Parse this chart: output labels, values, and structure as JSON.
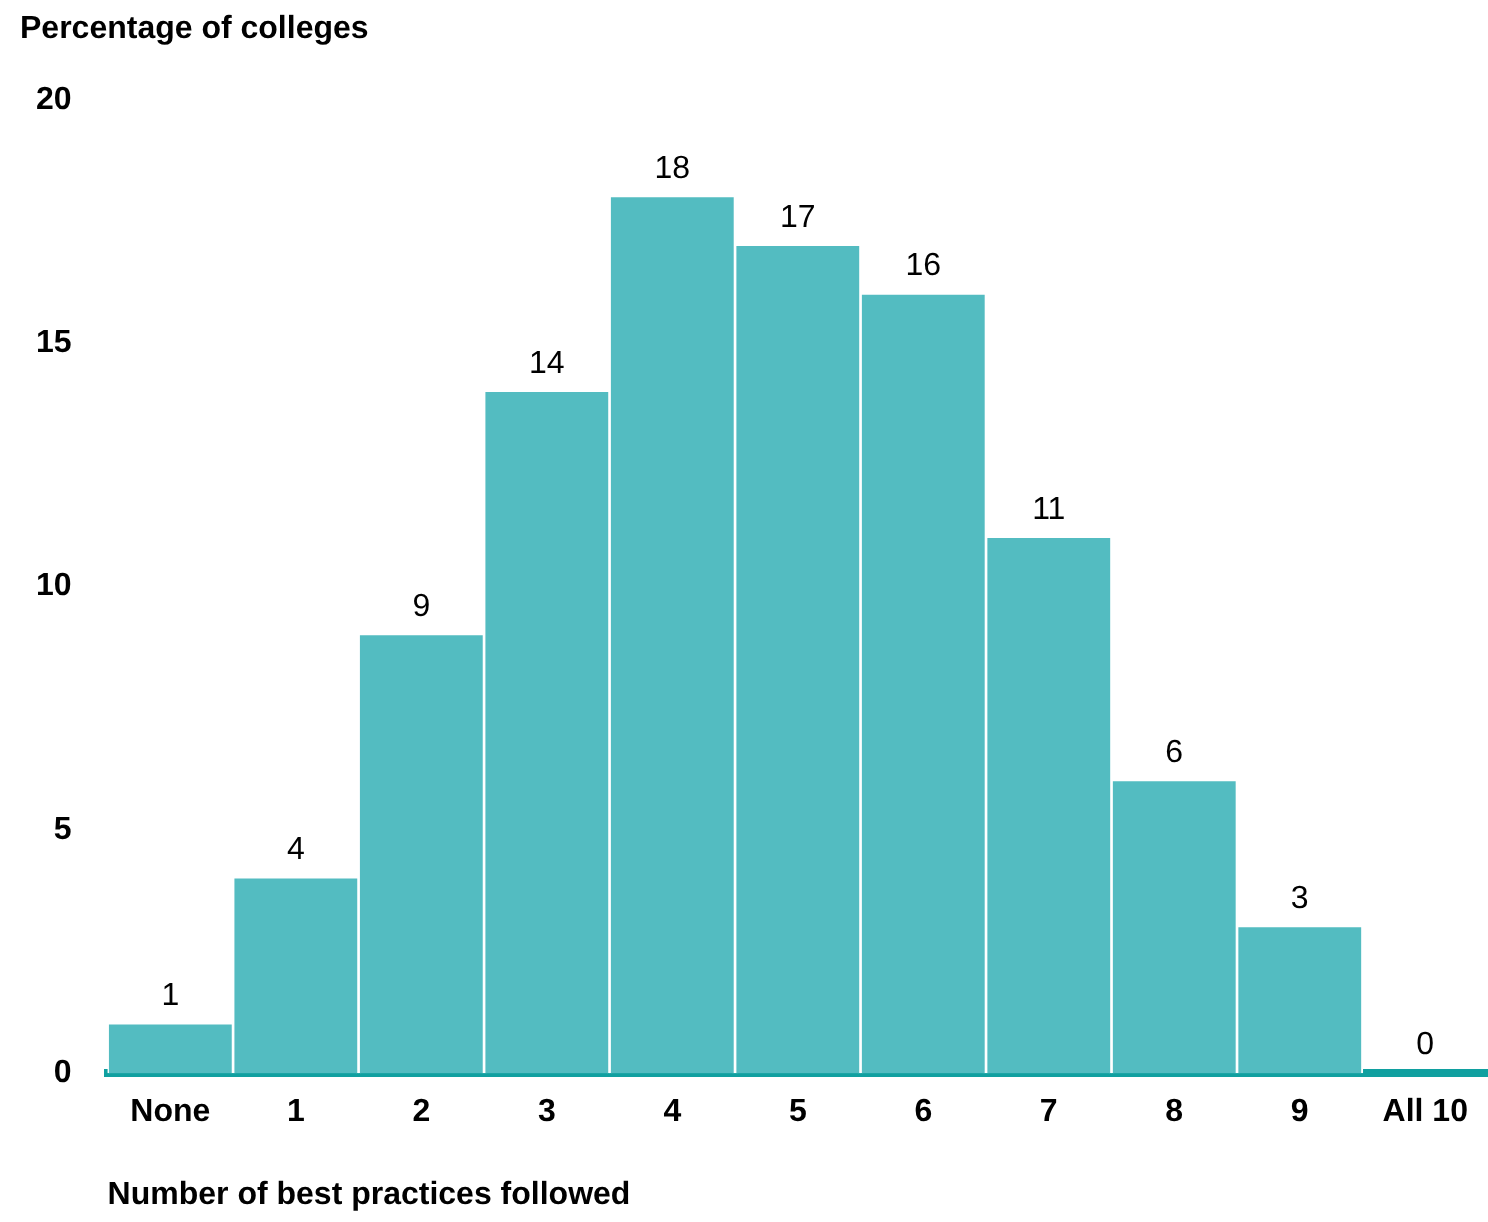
{
  "chart_data": {
    "type": "bar",
    "ylabel": "Percentage of colleges",
    "xlabel": "Number of best practices followed",
    "categories": [
      "None",
      "1",
      "2",
      "3",
      "4",
      "5",
      "6",
      "7",
      "8",
      "9",
      "All 10"
    ],
    "values": [
      1,
      4,
      9,
      14,
      18,
      17,
      16,
      11,
      6,
      3,
      0
    ],
    "color": "#53bcc1",
    "ylim": [
      0,
      20
    ],
    "yticks": [
      0,
      5,
      10,
      15,
      20
    ],
    "data_labels": true,
    "grid": false
  }
}
